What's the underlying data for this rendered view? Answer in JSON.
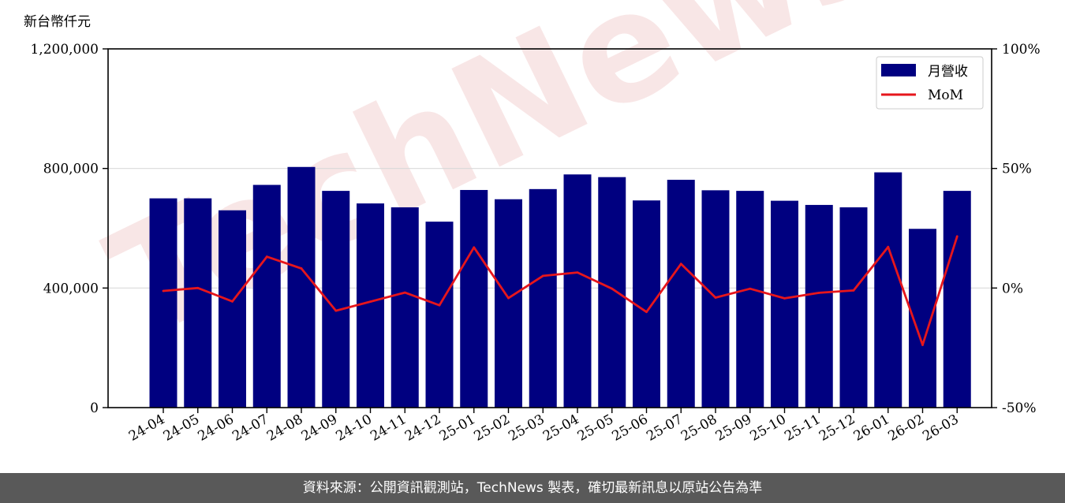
{
  "watermark": "TechNews",
  "footer_text": "資料來源：公開資訊觀測站，TechNews 製表，確切最新訊息以原站公告為準",
  "chart_data": {
    "type": "bar",
    "unit_label": "新台幣仟元",
    "categories": [
      "24-04",
      "24-05",
      "24-06",
      "24-07",
      "24-08",
      "24-09",
      "24-10",
      "24-11",
      "24-12",
      "25-01",
      "25-02",
      "25-03",
      "25-04",
      "25-05",
      "25-06",
      "25-07",
      "25-08",
      "25-09",
      "25-10",
      "25-11",
      "25-12",
      "26-01",
      "26-02",
      "26-03"
    ],
    "series": [
      {
        "name": "月營收",
        "axis": "left",
        "type": "bar",
        "color": "#000080",
        "values": [
          700000,
          700000,
          660000,
          745000,
          805000,
          725000,
          683000,
          670000,
          622000,
          728000,
          697000,
          731000,
          780000,
          771000,
          693000,
          762000,
          727000,
          725000,
          692000,
          678000,
          670000,
          787000,
          598000,
          725000
        ]
      },
      {
        "name": "MoM",
        "axis": "right",
        "type": "line",
        "color": "#e6161c",
        "values": [
          -1.2,
          0.0,
          -5.6,
          13.1,
          8.2,
          -9.5,
          -5.7,
          -1.9,
          -7.2,
          17.0,
          -4.2,
          5.1,
          6.5,
          -0.3,
          -10.0,
          10.1,
          -4.0,
          -0.3,
          -4.3,
          -2.0,
          -1.0,
          17.2,
          -23.8,
          21.6
        ]
      }
    ],
    "left_axis": {
      "ylim": [
        0,
        1200000
      ],
      "ticks": [
        0,
        400000,
        800000,
        1200000
      ],
      "tick_labels": [
        "0",
        "400,000",
        "800,000",
        "1,200,000"
      ]
    },
    "right_axis": {
      "ylim": [
        -50,
        100
      ],
      "ticks": [
        -50,
        0,
        50,
        100
      ],
      "tick_labels": [
        "-50%",
        "0%",
        "50%",
        "100%"
      ]
    },
    "grid": "horizontal",
    "legend_position": "top-right"
  }
}
